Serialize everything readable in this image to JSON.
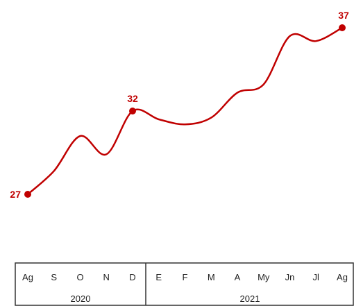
{
  "chart_data": {
    "type": "line",
    "title": "",
    "xlabel": "",
    "ylabel": "",
    "x": [
      "Ag",
      "S",
      "O",
      "N",
      "D",
      "E",
      "F",
      "M",
      "A",
      "My",
      "Jn",
      "Jl",
      "Ag"
    ],
    "groups": [
      {
        "label": "2020",
        "start": 0,
        "end": 4
      },
      {
        "label": "2021",
        "start": 5,
        "end": 12
      }
    ],
    "series": [
      {
        "values": [
          27,
          28.4,
          30.5,
          29.4,
          32,
          31.5,
          31.2,
          31.6,
          33.1,
          33.6,
          36.5,
          36.2,
          37
        ]
      }
    ],
    "data_labels": [
      {
        "index": 0,
        "text": "27"
      },
      {
        "index": 4,
        "text": "32"
      },
      {
        "index": 12,
        "text": "37"
      }
    ],
    "ylim": [
      24,
      38
    ],
    "grid": false,
    "legend": "none",
    "color": "#c00000"
  }
}
